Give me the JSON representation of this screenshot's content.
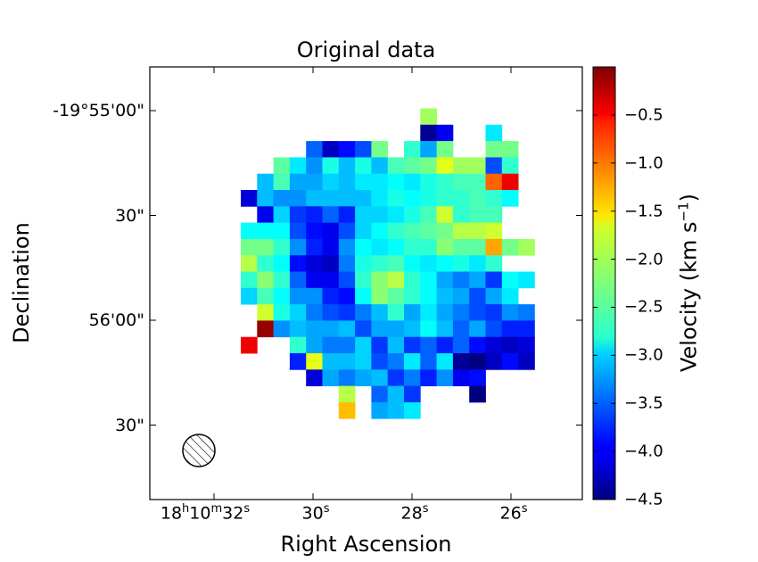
{
  "chart_data": {
    "type": "heatmap",
    "title": "Original data",
    "xlabel": "Right Ascension",
    "ylabel": "Declination",
    "colorbar_label": "Velocity (km s",
    "colorbar_label_sup": "−1",
    "colorbar_label_close": ")",
    "colormap": "jet",
    "vmin": -4.5,
    "vmax": 0.0,
    "colorbar_ticks": [
      {
        "value": -0.5,
        "label": "−0.5"
      },
      {
        "value": -1.0,
        "label": "−1.0"
      },
      {
        "value": -1.5,
        "label": "−1.5"
      },
      {
        "value": -2.0,
        "label": "−2.0"
      },
      {
        "value": -2.5,
        "label": "−2.5"
      },
      {
        "value": -3.0,
        "label": "−3.0"
      },
      {
        "value": -3.5,
        "label": "−3.5"
      },
      {
        "value": -4.0,
        "label": "−4.0"
      },
      {
        "value": -4.5,
        "label": "−4.5"
      }
    ],
    "y_ticks": [
      {
        "label": "-19°55'00\"",
        "arcsec": 0
      },
      {
        "label": "30\"",
        "arcsec": 30
      },
      {
        "label": "56'00\"",
        "arcsec": 60
      },
      {
        "label": "30\"",
        "arcsec": 90
      }
    ],
    "x_ticks": [
      {
        "main": "18",
        "s1": "h",
        "m": "10",
        "s2": "m",
        "sec": "32",
        "s3": "s",
        "ra_sec": 32
      },
      {
        "main": "",
        "s1": "",
        "m": "",
        "s2": "",
        "sec": "30",
        "s3": "s",
        "ra_sec": 30
      },
      {
        "main": "",
        "s1": "",
        "m": "",
        "s2": "",
        "sec": "28",
        "s3": "s",
        "ra_sec": 28
      },
      {
        "main": "",
        "s1": "",
        "m": "",
        "s2": "",
        "sec": "26",
        "s3": "s",
        "ra_sec": 26
      }
    ],
    "grid_cols": 18,
    "grid_rows": 19,
    "beam": "hatched circle",
    "pixel_values": [
      [
        null,
        null,
        null,
        null,
        null,
        null,
        null,
        null,
        null,
        null,
        null,
        -2.1,
        null,
        null,
        null,
        null,
        null,
        null
      ],
      [
        null,
        null,
        null,
        null,
        null,
        null,
        null,
        null,
        null,
        null,
        null,
        -4.4,
        -4.0,
        null,
        null,
        -2.9,
        null,
        null
      ],
      [
        null,
        null,
        null,
        null,
        -3.5,
        -4.2,
        -3.9,
        -3.6,
        -2.3,
        null,
        -2.6,
        -3.2,
        -2.3,
        null,
        null,
        -2.3,
        -2.3,
        null
      ],
      [
        null,
        null,
        -2.4,
        -2.9,
        -3.3,
        -2.7,
        -3.1,
        -2.7,
        -3.1,
        -2.5,
        -2.4,
        -2.3,
        -1.8,
        -2.1,
        -2.1,
        -3.6,
        -2.6,
        null
      ],
      [
        null,
        -3.1,
        -2.5,
        -3.2,
        -3.2,
        -3.0,
        -3.1,
        -2.9,
        -2.9,
        -2.8,
        -2.9,
        -2.7,
        -2.6,
        -2.5,
        -2.5,
        -1.0,
        -0.5,
        null
      ],
      [
        -4.1,
        -3.1,
        -3.3,
        -3.3,
        -3.1,
        -3.1,
        -3.1,
        -3.1,
        -2.9,
        -2.7,
        -2.8,
        -2.7,
        -2.6,
        -2.6,
        -2.5,
        -2.6,
        -2.8,
        null
      ],
      [
        null,
        -4.0,
        -3.0,
        -3.7,
        -3.8,
        -3.5,
        -3.8,
        -3.0,
        -3.0,
        -2.9,
        -2.7,
        -2.5,
        -1.9,
        -2.6,
        -2.5,
        -2.5,
        null,
        null
      ],
      [
        -2.8,
        -2.8,
        -2.8,
        -3.6,
        -3.9,
        -4.0,
        -3.6,
        -3.0,
        -2.8,
        -2.6,
        -2.5,
        -2.4,
        -2.3,
        -2.0,
        -2.0,
        -1.9,
        null,
        null
      ],
      [
        -2.3,
        -2.3,
        -2.6,
        -3.3,
        -3.8,
        -4.0,
        -3.3,
        -2.8,
        -2.9,
        -2.8,
        -2.6,
        -2.6,
        -2.2,
        -2.4,
        -2.4,
        -1.3,
        -2.3,
        -2.1
      ],
      [
        -2.0,
        -2.6,
        -2.8,
        -3.9,
        -4.1,
        -4.2,
        -3.4,
        -2.7,
        -2.6,
        -2.5,
        -2.8,
        -2.9,
        -2.8,
        -2.7,
        -2.9,
        -2.6,
        null,
        null
      ],
      [
        -2.6,
        -2.2,
        -2.6,
        -3.5,
        -4.0,
        -4.0,
        -3.6,
        -2.6,
        -2.2,
        -2.0,
        -2.6,
        -2.8,
        -3.2,
        -3.4,
        -3.2,
        -3.7,
        -2.8,
        -2.9
      ],
      [
        -3.0,
        -2.5,
        -2.8,
        -3.3,
        -3.3,
        -3.8,
        -3.9,
        -2.8,
        -2.2,
        -2.4,
        -2.6,
        -2.8,
        -3.1,
        -3.2,
        -3.6,
        -3.2,
        -2.9,
        null
      ],
      [
        null,
        -1.9,
        -2.7,
        -3.0,
        -3.4,
        -3.6,
        -3.7,
        -3.4,
        -3.1,
        -2.6,
        -3.2,
        -2.9,
        -3.2,
        -3.4,
        -3.6,
        -3.7,
        -3.3,
        -3.4
      ],
      [
        null,
        -0.1,
        -3.3,
        -3.1,
        -3.2,
        -3.2,
        -3.1,
        -3.6,
        -3.2,
        -3.2,
        -3.1,
        -2.8,
        -3.1,
        -3.5,
        -3.2,
        -3.6,
        -3.8,
        -3.8
      ],
      [
        -0.5,
        null,
        null,
        -2.6,
        -3.2,
        -3.4,
        -3.4,
        -3.0,
        -3.7,
        -3.1,
        -3.7,
        -3.5,
        -3.8,
        -3.5,
        -3.9,
        -4.1,
        -4.2,
        -4.1
      ],
      [
        null,
        null,
        null,
        -3.8,
        -1.8,
        -3.1,
        -3.1,
        -3.0,
        -3.6,
        -3.4,
        -2.9,
        -3.5,
        -2.9,
        -4.4,
        -4.5,
        -4.2,
        -3.9,
        -4.2
      ],
      [
        null,
        null,
        null,
        null,
        -4.1,
        -3.2,
        -3.4,
        -3.2,
        -3.1,
        -3.7,
        -3.4,
        -3.8,
        -3.3,
        -4.0,
        -3.9,
        null,
        null,
        null
      ],
      [
        null,
        null,
        null,
        null,
        null,
        null,
        -2.0,
        null,
        -3.5,
        -3.1,
        -3.7,
        null,
        null,
        null,
        -4.5,
        null,
        null,
        null
      ],
      [
        null,
        null,
        null,
        null,
        null,
        null,
        -1.4,
        null,
        -3.2,
        -3.1,
        -2.9,
        null,
        null,
        null,
        null,
        null,
        null,
        null
      ]
    ]
  }
}
